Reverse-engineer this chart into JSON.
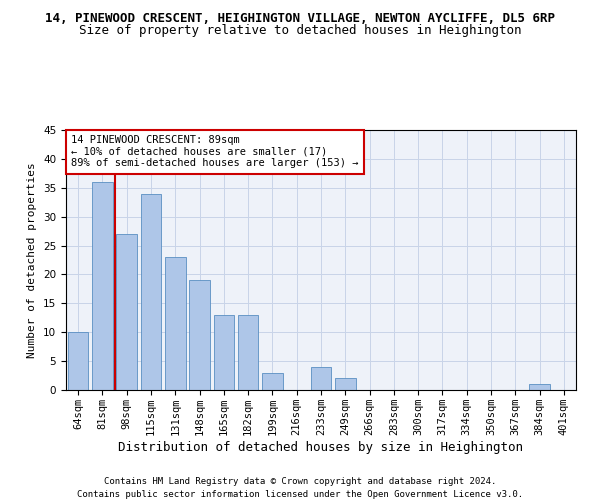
{
  "title1": "14, PINEWOOD CRESCENT, HEIGHINGTON VILLAGE, NEWTON AYCLIFFE, DL5 6RP",
  "title2": "Size of property relative to detached houses in Heighington",
  "xlabel": "Distribution of detached houses by size in Heighington",
  "ylabel": "Number of detached properties",
  "categories": [
    "64sqm",
    "81sqm",
    "98sqm",
    "115sqm",
    "131sqm",
    "148sqm",
    "165sqm",
    "182sqm",
    "199sqm",
    "216sqm",
    "233sqm",
    "249sqm",
    "266sqm",
    "283sqm",
    "300sqm",
    "317sqm",
    "334sqm",
    "350sqm",
    "367sqm",
    "384sqm",
    "401sqm"
  ],
  "values": [
    10,
    36,
    27,
    34,
    23,
    19,
    13,
    13,
    3,
    0,
    4,
    2,
    0,
    0,
    0,
    0,
    0,
    0,
    0,
    1,
    0
  ],
  "bar_color": "#aec6e8",
  "bar_edge_color": "#5a8fc2",
  "vline_color": "#cc0000",
  "annotation_text": "14 PINEWOOD CRESCENT: 89sqm\n← 10% of detached houses are smaller (17)\n89% of semi-detached houses are larger (153) →",
  "annotation_box_color": "#ffffff",
  "annotation_box_edge": "#cc0000",
  "ylim": [
    0,
    45
  ],
  "yticks": [
    0,
    5,
    10,
    15,
    20,
    25,
    30,
    35,
    40,
    45
  ],
  "footer1": "Contains HM Land Registry data © Crown copyright and database right 2024.",
  "footer2": "Contains public sector information licensed under the Open Government Licence v3.0.",
  "background_color": "#eef2f9",
  "grid_color": "#c8d4e8",
  "title1_fontsize": 9,
  "title2_fontsize": 9,
  "xlabel_fontsize": 9,
  "ylabel_fontsize": 8,
  "tick_fontsize": 7.5,
  "footer_fontsize": 6.5
}
